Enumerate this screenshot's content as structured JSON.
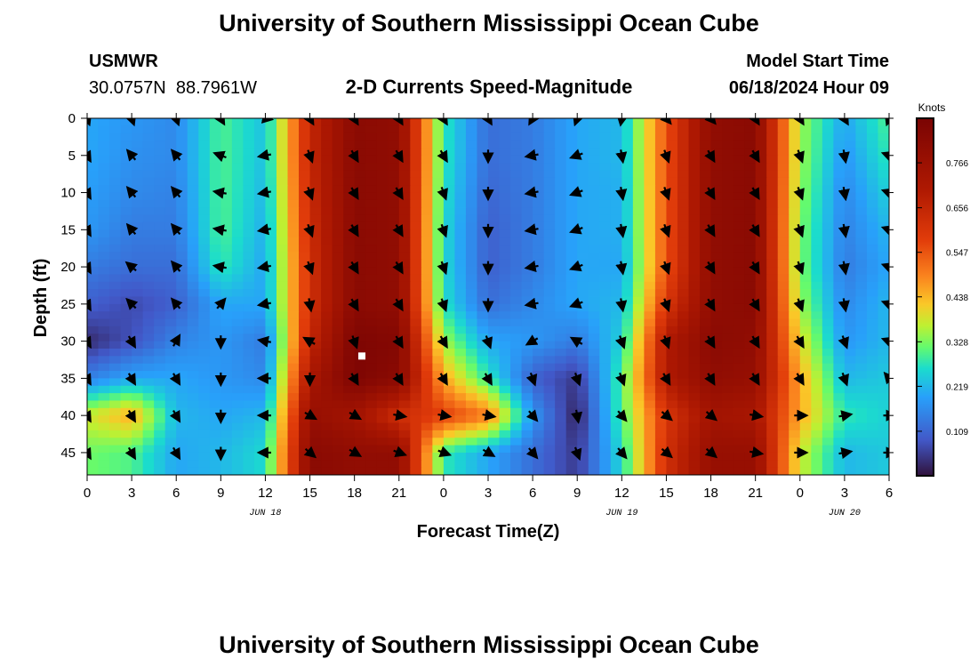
{
  "header": {
    "title": "University of Southern Mississippi Ocean Cube",
    "station": "USMWR",
    "coords": "30.0757N  88.7961W",
    "subtitle": "2-D Currents Speed-Magnitude",
    "model_label": "Model Start Time",
    "model_time": "06/18/2024 Hour 09"
  },
  "footer": {
    "title": "University of Southern Mississippi Ocean Cube"
  },
  "colorbar": {
    "label": "Knots",
    "ticks": [
      0.109,
      0.219,
      0.328,
      0.438,
      0.547,
      0.656,
      0.766
    ],
    "tick_labels": [
      "0.109",
      "0.219",
      "0.328",
      "0.438",
      "0.547",
      "0.656",
      "0.766"
    ],
    "min": 0.0,
    "max": 0.875
  },
  "chart_data": {
    "type": "heatmap",
    "title": "2-D Currents Speed-Magnitude",
    "xlabel": "Forecast Time(Z)",
    "ylabel": "Depth (ft)",
    "xlim": [
      0,
      54
    ],
    "ylim": [
      48,
      0
    ],
    "x_ticks": [
      0,
      3,
      6,
      9,
      12,
      15,
      18,
      21,
      24,
      27,
      30,
      33,
      36,
      39,
      42,
      45,
      48,
      51,
      54
    ],
    "x_tick_labels": [
      "0",
      "3",
      "6",
      "9",
      "12",
      "15",
      "18",
      "21",
      "0",
      "3",
      "6",
      "9",
      "12",
      "15",
      "18",
      "21",
      "0",
      "3",
      "6"
    ],
    "y_ticks": [
      0,
      5,
      10,
      15,
      20,
      25,
      30,
      35,
      40,
      45
    ],
    "y_tick_labels": [
      "0",
      "5",
      "10",
      "15",
      "20",
      "25",
      "30",
      "35",
      "40",
      "45"
    ],
    "date_labels": [
      {
        "x": 12,
        "text": "JUN 18"
      },
      {
        "x": 36,
        "text": "JUN 19"
      },
      {
        "x": 51,
        "text": "JUN 20"
      }
    ],
    "hours": [
      0,
      3,
      6,
      9,
      12,
      15,
      18,
      21,
      24,
      27,
      30,
      33,
      36,
      39,
      42,
      45,
      48,
      51,
      54
    ],
    "depths": [
      0,
      5,
      10,
      15,
      20,
      25,
      30,
      35,
      40,
      45
    ],
    "speed_knots": [
      [
        0.2,
        0.18,
        0.16,
        0.3,
        0.23,
        0.65,
        0.82,
        0.8,
        0.28,
        0.12,
        0.14,
        0.2,
        0.22,
        0.55,
        0.8,
        0.82,
        0.35,
        0.2,
        0.3
      ],
      [
        0.2,
        0.17,
        0.16,
        0.3,
        0.23,
        0.65,
        0.82,
        0.8,
        0.28,
        0.12,
        0.14,
        0.2,
        0.22,
        0.55,
        0.8,
        0.82,
        0.35,
        0.18,
        0.28
      ],
      [
        0.19,
        0.16,
        0.15,
        0.3,
        0.22,
        0.64,
        0.82,
        0.8,
        0.27,
        0.11,
        0.14,
        0.2,
        0.21,
        0.55,
        0.8,
        0.82,
        0.34,
        0.16,
        0.25
      ],
      [
        0.18,
        0.14,
        0.14,
        0.3,
        0.21,
        0.63,
        0.82,
        0.8,
        0.26,
        0.1,
        0.14,
        0.2,
        0.21,
        0.55,
        0.8,
        0.82,
        0.33,
        0.15,
        0.22
      ],
      [
        0.14,
        0.12,
        0.12,
        0.28,
        0.2,
        0.62,
        0.82,
        0.8,
        0.26,
        0.1,
        0.14,
        0.2,
        0.2,
        0.55,
        0.8,
        0.82,
        0.33,
        0.14,
        0.2
      ],
      [
        0.1,
        0.07,
        0.1,
        0.2,
        0.2,
        0.62,
        0.82,
        0.8,
        0.27,
        0.12,
        0.16,
        0.2,
        0.22,
        0.6,
        0.8,
        0.82,
        0.35,
        0.16,
        0.22
      ],
      [
        0.03,
        0.08,
        0.15,
        0.18,
        0.14,
        0.65,
        0.86,
        0.84,
        0.35,
        0.2,
        0.18,
        0.14,
        0.25,
        0.7,
        0.82,
        0.8,
        0.4,
        0.18,
        0.22
      ],
      [
        0.15,
        0.2,
        0.2,
        0.18,
        0.16,
        0.72,
        0.86,
        0.82,
        0.45,
        0.28,
        0.1,
        0.05,
        0.3,
        0.7,
        0.8,
        0.78,
        0.45,
        0.22,
        0.24
      ],
      [
        0.38,
        0.45,
        0.22,
        0.2,
        0.22,
        0.78,
        0.74,
        0.62,
        0.58,
        0.5,
        0.18,
        0.02,
        0.3,
        0.6,
        0.74,
        0.72,
        0.45,
        0.28,
        0.25
      ],
      [
        0.32,
        0.3,
        0.2,
        0.22,
        0.26,
        0.82,
        0.8,
        0.8,
        0.28,
        0.2,
        0.12,
        0.05,
        0.26,
        0.62,
        0.78,
        0.78,
        0.38,
        0.22,
        0.24
      ]
    ],
    "direction_deg": [
      [
        160,
        160,
        160,
        150,
        100,
        150,
        150,
        150,
        150,
        150,
        210,
        200,
        190,
        140,
        140,
        150,
        150,
        150,
        200
      ],
      [
        150,
        320,
        320,
        290,
        260,
        160,
        150,
        150,
        150,
        180,
        260,
        250,
        170,
        160,
        150,
        150,
        160,
        170,
        290
      ],
      [
        150,
        320,
        320,
        280,
        260,
        160,
        150,
        150,
        160,
        180,
        260,
        250,
        170,
        160,
        150,
        150,
        160,
        170,
        290
      ],
      [
        150,
        320,
        320,
        280,
        260,
        160,
        150,
        150,
        160,
        180,
        260,
        250,
        170,
        160,
        150,
        150,
        160,
        170,
        290
      ],
      [
        150,
        310,
        320,
        280,
        260,
        160,
        150,
        150,
        160,
        180,
        260,
        250,
        170,
        160,
        150,
        150,
        160,
        170,
        290
      ],
      [
        150,
        315,
        320,
        40,
        260,
        170,
        150,
        150,
        160,
        180,
        260,
        250,
        170,
        160,
        150,
        150,
        160,
        170,
        290
      ],
      [
        150,
        150,
        30,
        180,
        280,
        300,
        160,
        150,
        150,
        160,
        240,
        300,
        160,
        160,
        150,
        150,
        150,
        160,
        290
      ],
      [
        150,
        150,
        150,
        180,
        270,
        180,
        150,
        150,
        150,
        150,
        160,
        160,
        160,
        150,
        150,
        150,
        150,
        160,
        320
      ],
      [
        150,
        150,
        150,
        180,
        270,
        120,
        120,
        100,
        100,
        100,
        140,
        170,
        140,
        130,
        130,
        100,
        90,
        80,
        90
      ],
      [
        150,
        150,
        150,
        180,
        270,
        130,
        120,
        110,
        110,
        120,
        140,
        160,
        140,
        130,
        130,
        100,
        90,
        80,
        90
      ]
    ],
    "marker": {
      "x": 18.5,
      "y": 32.0
    }
  }
}
